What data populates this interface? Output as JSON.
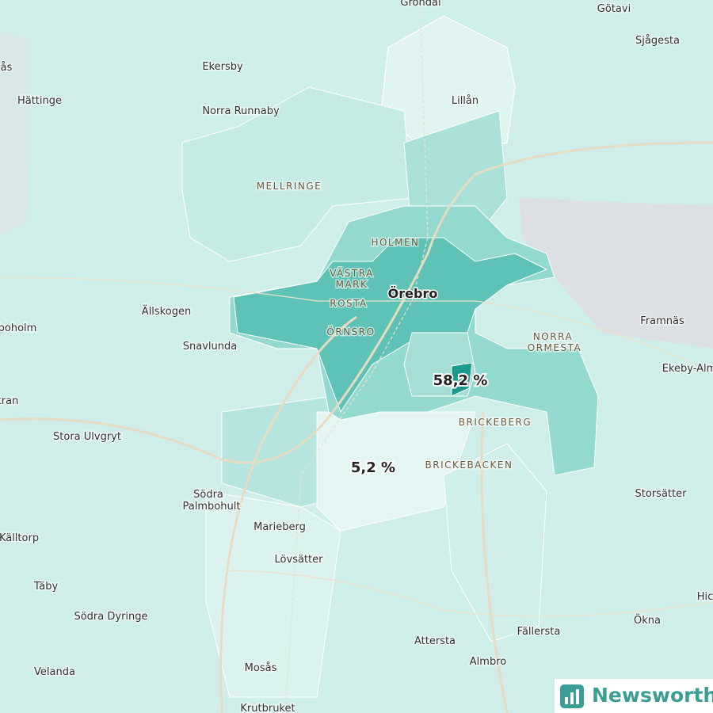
{
  "places": [
    "Grondal",
    "Götavi",
    "Sjågesta",
    "ås",
    "Ekersby",
    "Hättinge",
    "Norra Runnaby",
    "Lillån",
    "Ällskogen",
    "Snavlunda",
    "boholm",
    "Framnäs",
    "Ekeby-Alm",
    "tran",
    "Stora Ulvgryt",
    "Storsätter",
    [
      "Södra",
      "Palmbohult"
    ],
    "Marieberg",
    "Källtorp",
    "Lövsätter",
    "Täby",
    "Hic",
    "Södra Dyringe",
    "Ökna",
    "Fällersta",
    "Attersta",
    "Almbro",
    "Velanda",
    "Mosås",
    "Krutbruket"
  ],
  "districts": [
    [
      "MELLRINGE"
    ],
    [
      "HOLMEN"
    ],
    [
      "VÄSTRA",
      "MARK"
    ],
    [
      "ROSTA"
    ],
    [
      "ÖRNSRO"
    ],
    [
      "NORRA",
      "ORMESTA"
    ],
    [
      "BRICKEBERG"
    ],
    [
      "BRICKEBACKEN"
    ]
  ],
  "city": "Örebro",
  "value_labels": [
    "58,2 %",
    "5,2 %"
  ],
  "brand": "Newsworthy"
}
